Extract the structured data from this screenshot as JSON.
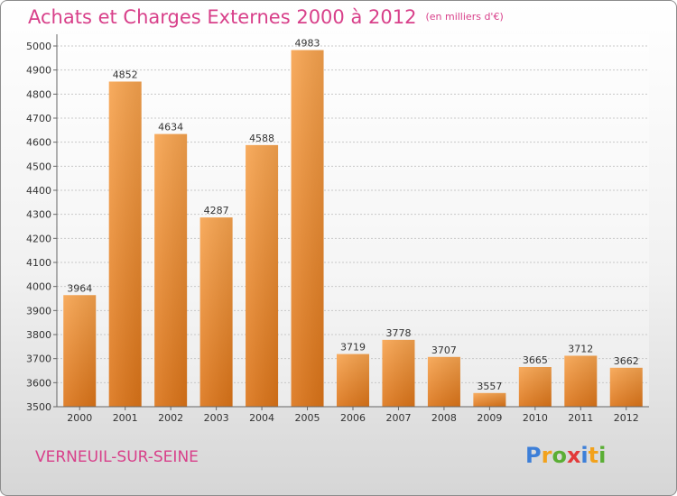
{
  "title": "Achats et Charges Externes 2000 à 2012",
  "unit": "(en milliers d'€)",
  "city": "VERNEUIL-SUR-SEINE",
  "logo": {
    "letters": [
      "P",
      "r",
      "o",
      "x",
      "i",
      "t",
      "i"
    ],
    "colors": [
      "#3d7fd8",
      "#f2a21c",
      "#5aae34",
      "#e23a3a",
      "#3d7fd8",
      "#f2a21c",
      "#5aae34"
    ]
  },
  "chart_data": {
    "type": "bar",
    "categories": [
      "2000",
      "2001",
      "2002",
      "2003",
      "2004",
      "2005",
      "2006",
      "2007",
      "2008",
      "2009",
      "2010",
      "2011",
      "2012"
    ],
    "values": [
      3964,
      4852,
      4634,
      4287,
      4588,
      4983,
      3719,
      3778,
      3707,
      3557,
      3665,
      3712,
      3662
    ],
    "ylim": [
      3500,
      5000
    ],
    "yticks": [
      3500,
      3600,
      3700,
      3800,
      3900,
      4000,
      4100,
      4200,
      4300,
      4400,
      4500,
      4600,
      4700,
      4800,
      4900,
      5000
    ],
    "grid": true,
    "bar_color": "#f0943a"
  }
}
